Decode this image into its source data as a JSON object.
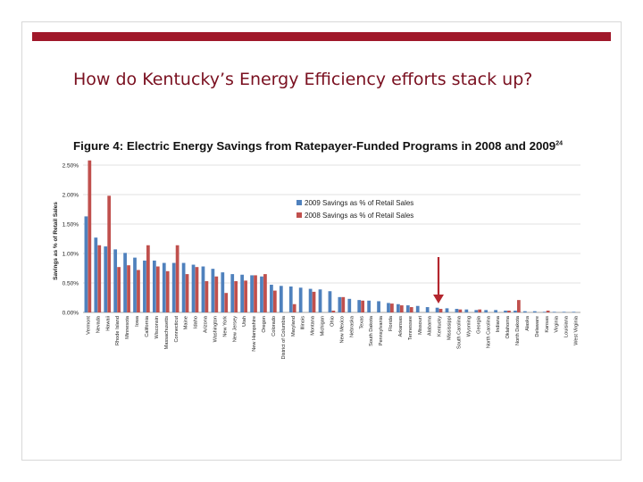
{
  "slide": {
    "title": "How do Kentucky’s Energy Efficiency efforts stack up?"
  },
  "colors": {
    "accent_bar": "#a0182a",
    "title_text": "#7a1020",
    "series_2009": "#4f81bd",
    "series_2008": "#c0504d",
    "arrow": "#b3262e"
  },
  "chart_data": {
    "type": "bar",
    "title": "Figure 4: Electric Energy Savings from Ratepayer-Funded Programs in 2008 and 2009",
    "title_superscript": "24",
    "ylabel": "Savings as % of Retail Sales",
    "xlabel": "",
    "ylim": [
      0,
      2.5
    ],
    "yticks": [
      "0.00%",
      "0.50%",
      "1.00%",
      "1.50%",
      "2.00%",
      "2.50%"
    ],
    "legend_position": "upper-center",
    "annotation": "arrow pointing to Kentucky",
    "categories": [
      "Vermont",
      "Nevada",
      "Hawaii",
      "Rhode Island",
      "Minnesota",
      "Iowa",
      "California",
      "Wisconsin",
      "Massachusetts",
      "Connecticut",
      "Maine",
      "Idaho",
      "Arizona",
      "Washington",
      "New York",
      "New Jersey",
      "Utah",
      "New Hampshire",
      "Oregon",
      "Colorado",
      "District of Columbia",
      "Maryland",
      "Illinois",
      "Montana",
      "Michigan",
      "Ohio",
      "New Mexico",
      "Nebraska",
      "Texas",
      "South Dakota",
      "Pennsylvania",
      "Florida",
      "Arkansas",
      "Tennessee",
      "Missouri",
      "Alabama",
      "Kentucky",
      "Mississippi",
      "South Carolina",
      "Wyoming",
      "Georgia",
      "North Carolina",
      "Indiana",
      "Oklahoma",
      "North Dakota",
      "Alaska",
      "Delaware",
      "Kansas",
      "Virginia",
      "Louisiana",
      "West Virginia"
    ],
    "series": [
      {
        "name": "2009 Savings as % of Retail Sales",
        "values": [
          1.63,
          1.27,
          1.12,
          1.07,
          1.01,
          0.93,
          0.88,
          0.88,
          0.84,
          0.84,
          0.84,
          0.81,
          0.78,
          0.74,
          0.68,
          0.65,
          0.64,
          0.63,
          0.61,
          0.47,
          0.45,
          0.44,
          0.42,
          0.4,
          0.39,
          0.36,
          0.26,
          0.23,
          0.21,
          0.2,
          0.19,
          0.16,
          0.14,
          0.12,
          0.11,
          0.09,
          0.08,
          0.07,
          0.06,
          0.05,
          0.04,
          0.04,
          0.04,
          0.03,
          0.03,
          0.02,
          0.02,
          0.01,
          0.01,
          0.01,
          0.01
        ]
      },
      {
        "name": "2008 Savings as % of Retail Sales",
        "values": [
          2.58,
          1.14,
          1.98,
          0.77,
          0.8,
          0.72,
          1.14,
          0.78,
          0.7,
          1.14,
          0.65,
          0.77,
          0.53,
          0.61,
          0.33,
          0.53,
          0.54,
          0.63,
          0.65,
          0.37,
          0.0,
          0.14,
          0.0,
          0.35,
          0.0,
          0.03,
          0.26,
          0.0,
          0.2,
          0.0,
          0.0,
          0.15,
          0.12,
          0.09,
          0.0,
          0.0,
          0.06,
          0.0,
          0.05,
          0.0,
          0.05,
          0.0,
          0.0,
          0.03,
          0.21,
          0.0,
          0.0,
          0.03,
          0.0,
          0.0,
          0.0
        ]
      }
    ]
  }
}
